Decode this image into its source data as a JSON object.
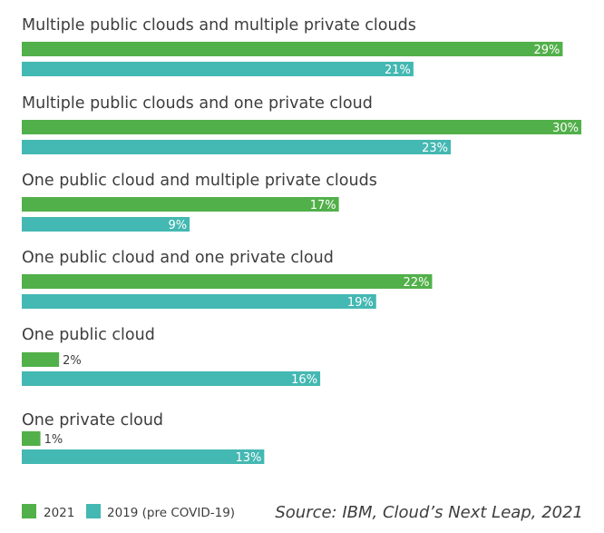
{
  "chart_data": {
    "type": "bar",
    "orientation": "horizontal",
    "categories": [
      "Multiple public clouds and multiple private clouds",
      "Multiple public clouds and one private cloud",
      "One public cloud and multiple private clouds",
      "One public cloud and one private cloud",
      "One public cloud",
      "One private cloud"
    ],
    "series": [
      {
        "name": "2021",
        "color": "#52b04a",
        "values": [
          29,
          30,
          17,
          22,
          2,
          1
        ]
      },
      {
        "name": "2019 (pre COVID-19)",
        "color": "#44b8b2",
        "values": [
          21,
          23,
          9,
          19,
          16,
          13
        ]
      }
    ],
    "value_suffix": "%",
    "xlim": [
      0,
      30
    ],
    "grid": false,
    "legend": "bottom-left",
    "source": "Source: IBM, Cloud’s Next Leap, 2021"
  }
}
